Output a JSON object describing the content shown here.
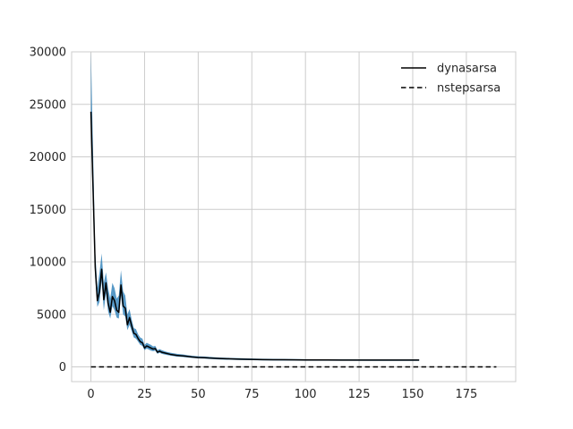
{
  "chart_data": {
    "type": "line",
    "title": "",
    "xlabel": "",
    "ylabel": "",
    "xlim": [
      -9,
      198
    ],
    "ylim": [
      -1400,
      30000
    ],
    "x_ticks": [
      0,
      25,
      50,
      75,
      100,
      125,
      150,
      175
    ],
    "x_tick_labels": [
      "0",
      "25",
      "50",
      "75",
      "100",
      "125",
      "150",
      "175"
    ],
    "y_ticks": [
      0,
      5000,
      10000,
      15000,
      20000,
      25000,
      30000
    ],
    "y_tick_labels": [
      "0",
      "5000",
      "10000",
      "15000",
      "20000",
      "25000",
      "30000"
    ],
    "grid": true,
    "legend_position": "top-right",
    "colors": {
      "grid": "#cccccc",
      "spine": "#cccccc",
      "line": "#000000",
      "band": "#1f77b4",
      "text": "#262626"
    },
    "series": [
      {
        "name": "dynasarsa",
        "line_style": "solid",
        "x": [
          0,
          2,
          3,
          4,
          5,
          6,
          7,
          8,
          9,
          10,
          11,
          12,
          13,
          14,
          15,
          16,
          17,
          18,
          19,
          20,
          21,
          22,
          23,
          24,
          25,
          26,
          27,
          28,
          29,
          30,
          31,
          32,
          33,
          35,
          37,
          40,
          43,
          45,
          47,
          50,
          53,
          55,
          58,
          60,
          63,
          65,
          68,
          70,
          75,
          80,
          85,
          90,
          95,
          100,
          110,
          120,
          130,
          140,
          153
        ],
        "y": [
          24300,
          9500,
          6300,
          7200,
          9300,
          6400,
          8000,
          6100,
          5200,
          6700,
          6300,
          5400,
          5200,
          7800,
          5800,
          5600,
          4000,
          4700,
          3900,
          3200,
          3100,
          2700,
          2400,
          2300,
          1800,
          2000,
          1900,
          1800,
          1700,
          1750,
          1400,
          1500,
          1400,
          1300,
          1200,
          1100,
          1050,
          1000,
          950,
          900,
          880,
          850,
          820,
          800,
          780,
          770,
          750,
          740,
          720,
          700,
          690,
          680,
          670,
          660,
          660,
          655,
          650,
          650,
          650
        ],
        "band_upper": [
          30000,
          11000,
          7500,
          9000,
          10800,
          8000,
          9000,
          7500,
          6500,
          8000,
          7500,
          6500,
          6800,
          9200,
          7200,
          6800,
          5000,
          5500,
          4500,
          3700,
          3600,
          3100,
          2800,
          2700,
          2100,
          2300,
          2200,
          2100,
          1950,
          2000,
          1600,
          1700,
          1600,
          1450,
          1350,
          1250,
          1180,
          1120,
          1070,
          1010,
          990,
          960,
          920,
          900,
          880,
          860,
          840,
          830,
          800,
          780,
          765,
          755,
          745,
          735,
          730,
          725,
          720,
          720,
          720
        ],
        "band_lower": [
          22000,
          8500,
          5700,
          6200,
          8200,
          5400,
          7000,
          5300,
          4600,
          5800,
          5400,
          4700,
          4600,
          6800,
          5000,
          4800,
          3500,
          4000,
          3400,
          2800,
          2700,
          2400,
          2100,
          2000,
          1600,
          1750,
          1650,
          1550,
          1500,
          1550,
          1250,
          1350,
          1250,
          1150,
          1080,
          980,
          940,
          900,
          850,
          810,
          790,
          760,
          730,
          710,
          690,
          680,
          660,
          650,
          640,
          620,
          615,
          605,
          595,
          585,
          590,
          585,
          580,
          580,
          580
        ]
      },
      {
        "name": "nstepsarsa",
        "line_style": "dashed",
        "x": [
          0,
          189
        ],
        "y": [
          0,
          0
        ]
      }
    ]
  }
}
